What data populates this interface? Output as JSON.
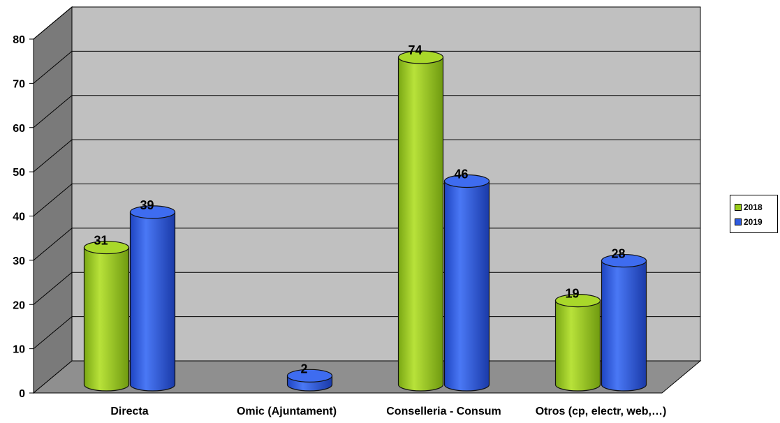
{
  "chart_data": {
    "type": "bar",
    "categories": [
      "Directa",
      "Omic (Ajuntament)",
      "Conselleria - Consum",
      "Otros (cp, electr, web,…)"
    ],
    "series": [
      {
        "name": "2018",
        "values": [
          31,
          0,
          74,
          19
        ],
        "labels": [
          "31",
          "",
          "74",
          "19"
        ],
        "color": "#9ACD1A"
      },
      {
        "name": "2019",
        "values": [
          39,
          2,
          46,
          28
        ],
        "labels": [
          "39",
          "2",
          "46",
          "28"
        ],
        "color": "#2E5BE0"
      }
    ],
    "ylim": [
      0,
      80
    ],
    "yticks": [
      "0",
      "10",
      "20",
      "30",
      "40",
      "50",
      "60",
      "70",
      "80"
    ],
    "grid": true,
    "legend_position": "right",
    "colors": {
      "wall": "#c0c0c0",
      "floor": "#8f8f8f",
      "side_wall": "#7a7a7a"
    }
  }
}
